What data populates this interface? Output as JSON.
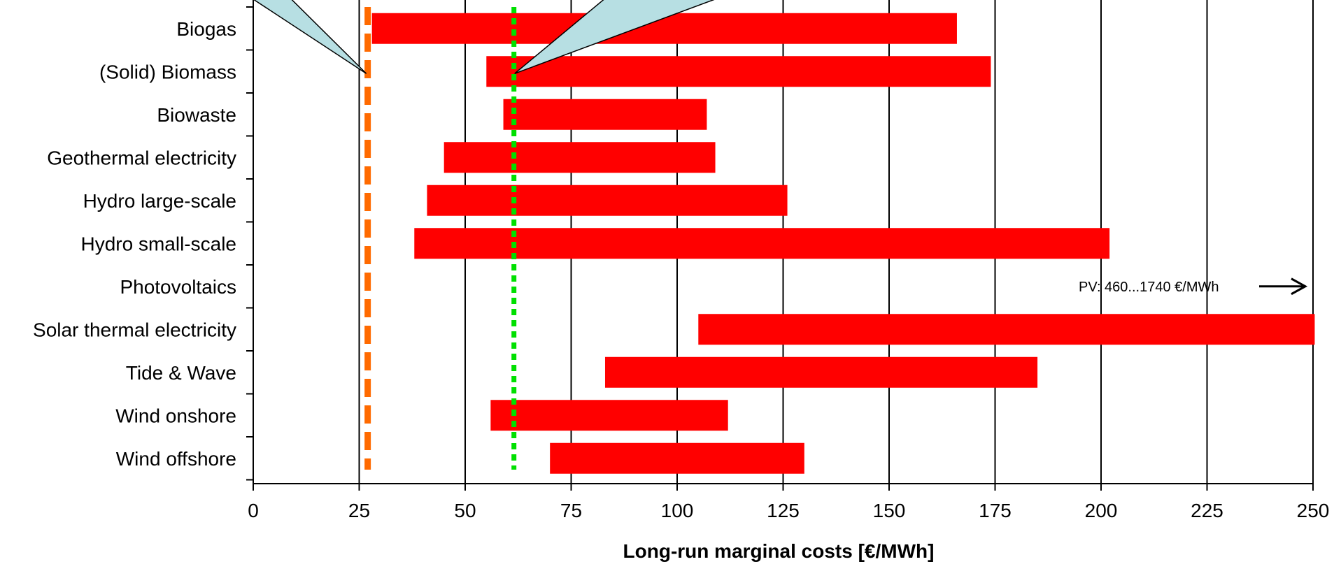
{
  "colors": {
    "bar": "#ff0000",
    "orange_line": "#ff6a00",
    "green_line": "#00e000",
    "callout_fill": "#b7dfe3",
    "grid": "#000000"
  },
  "chart_data": {
    "type": "bar",
    "orientation": "horizontal-range",
    "categories": [
      "Biogas",
      "(Solid) Biomass",
      "Biowaste",
      "Geothermal electricity",
      "Hydro large-scale",
      "Hydro small-scale",
      "Photovoltaics",
      "Solar thermal electricity",
      "Tide & Wave",
      "Wind onshore",
      "Wind offshore"
    ],
    "ranges": [
      [
        28,
        166
      ],
      [
        55,
        174
      ],
      [
        59,
        107
      ],
      [
        45,
        109
      ],
      [
        41,
        126
      ],
      [
        38,
        202
      ],
      null,
      [
        105,
        251
      ],
      [
        83,
        185
      ],
      [
        56,
        112
      ],
      [
        70,
        130
      ]
    ],
    "xlabel": "Long-run marginal costs [€/MWh]",
    "xlim": [
      0,
      250
    ],
    "xticks": [
      "0",
      "25",
      "50",
      "75",
      "100",
      "125",
      "150",
      "175",
      "200",
      "225",
      "250"
    ],
    "vertical_gridlines": true,
    "reference_lines": [
      {
        "style": "dashed",
        "color": "#ff6a00",
        "value": 27
      },
      {
        "style": "dotted",
        "color": "#00e000",
        "value": 61.5
      }
    ],
    "annotation": {
      "text": "PV: 460...1740 €/MWh",
      "row": "Photovoltaics",
      "arrow": "right"
    },
    "callouts": [
      {
        "target_value": 27,
        "target_row": "(Solid) Biomass"
      },
      {
        "target_value": 61.5,
        "target_row": "(Solid) Biomass"
      }
    ]
  }
}
